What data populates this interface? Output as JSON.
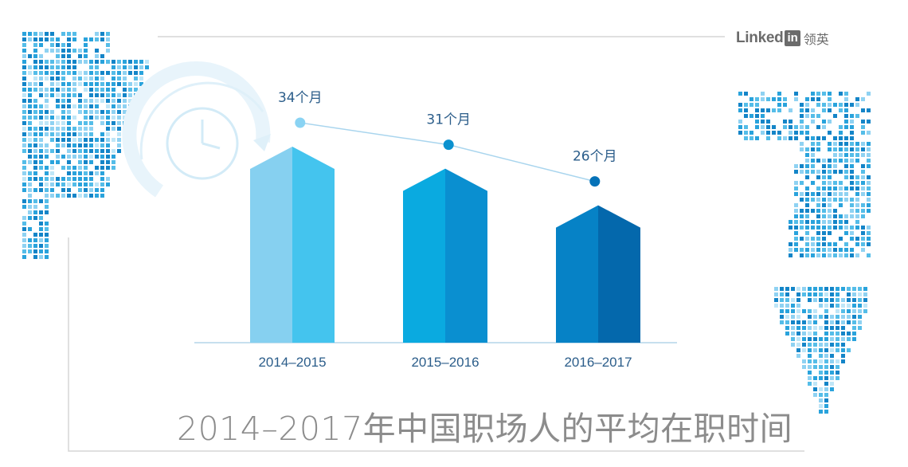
{
  "brand": {
    "word": "Linked",
    "in": "in",
    "cn": "领英"
  },
  "chart_data": {
    "type": "bar",
    "title": "2014–2017年中国职场人的平均在职时间",
    "categories": [
      "2014–2015",
      "2015–2016",
      "2016–2017"
    ],
    "values": [
      34,
      31,
      26
    ],
    "value_labels": [
      "34个月",
      "31个月",
      "26个月"
    ],
    "unit": "个月",
    "trend_line": true,
    "grid": false,
    "bar_colors": [
      {
        "left": "#86d0f0",
        "right": "#44c4ee"
      },
      {
        "left": "#0aaae0",
        "right": "#0a8fd0"
      },
      {
        "left": "#0682c6",
        "right": "#0468ac"
      }
    ],
    "label_color": "#2b5d8a",
    "point_colors": [
      "#8ad3f3",
      "#0a91cf",
      "#0572b8"
    ]
  }
}
